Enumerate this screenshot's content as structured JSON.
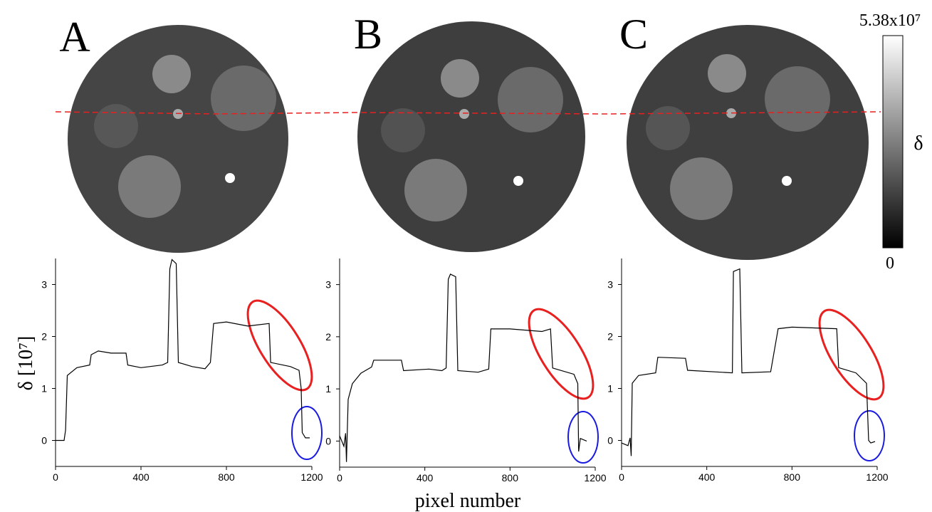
{
  "chart_data": [
    {
      "type": "line",
      "label": "A",
      "ylabel": "δ [10⁷]",
      "x": [
        0,
        40,
        47,
        55,
        100,
        160,
        167,
        200,
        260,
        330,
        338,
        400,
        500,
        525,
        535,
        545,
        565,
        575,
        640,
        700,
        725,
        740,
        800,
        900,
        1000,
        1007,
        1100,
        1140,
        1150,
        1155,
        1170,
        1190
      ],
      "series": [
        {
          "color": "#000000",
          "values": [
            0,
            0,
            0.2,
            1.25,
            1.4,
            1.45,
            1.65,
            1.72,
            1.68,
            1.68,
            1.45,
            1.4,
            1.45,
            1.5,
            3.3,
            3.48,
            3.4,
            1.5,
            1.42,
            1.38,
            1.5,
            2.25,
            2.28,
            2.2,
            2.25,
            1.5,
            1.42,
            1.35,
            1.0,
            0.15,
            0.05,
            0.05
          ]
        }
      ],
      "xlim": [
        0,
        1200
      ],
      "ylim": [
        -0.5,
        3.5
      ],
      "xticks": [
        0,
        400,
        800,
        1200
      ],
      "yticks": [
        0,
        1,
        2,
        3
      ]
    },
    {
      "type": "line",
      "label": "B",
      "xlabel": "pixel number",
      "x": [
        0,
        20,
        28,
        32,
        40,
        60,
        100,
        150,
        160,
        250,
        290,
        300,
        420,
        480,
        500,
        510,
        520,
        545,
        555,
        650,
        700,
        710,
        800,
        950,
        990,
        1000,
        1100,
        1118,
        1122,
        1130,
        1160
      ],
      "series": [
        {
          "color": "#000000",
          "values": [
            0.1,
            -0.1,
            0.15,
            -0.4,
            0.8,
            1.1,
            1.3,
            1.42,
            1.55,
            1.55,
            1.55,
            1.35,
            1.38,
            1.35,
            1.4,
            3.1,
            3.2,
            3.15,
            1.35,
            1.32,
            1.38,
            2.15,
            2.15,
            2.1,
            2.15,
            1.4,
            1.28,
            1.1,
            -0.2,
            0.05,
            0.0
          ]
        }
      ],
      "xlim": [
        0,
        1200
      ],
      "ylim": [
        -0.5,
        3.5
      ],
      "xticks": [
        0,
        400,
        800,
        1200
      ],
      "yticks": [
        0,
        1,
        2,
        3
      ]
    },
    {
      "type": "line",
      "label": "C",
      "x": [
        0,
        30,
        40,
        45,
        50,
        80,
        160,
        170,
        300,
        310,
        520,
        525,
        555,
        565,
        700,
        735,
        800,
        1010,
        1019,
        1100,
        1150,
        1160,
        1170,
        1190
      ],
      "series": [
        {
          "color": "#000000",
          "values": [
            -0.05,
            -0.1,
            0.05,
            -0.3,
            1.1,
            1.25,
            1.3,
            1.6,
            1.58,
            1.35,
            1.3,
            3.25,
            3.3,
            1.3,
            1.32,
            2.15,
            2.18,
            2.15,
            1.4,
            1.3,
            1.1,
            0.0,
            -0.05,
            -0.02
          ]
        }
      ],
      "xlim": [
        0,
        1200
      ],
      "ylim": [
        -0.5,
        3.5
      ],
      "xticks": [
        0,
        400,
        800,
        1200
      ],
      "yticks": [
        0,
        1,
        2,
        3
      ]
    }
  ],
  "colorbar": {
    "label": "δ",
    "max_label": "5.38x10⁷",
    "min_label": "0"
  }
}
